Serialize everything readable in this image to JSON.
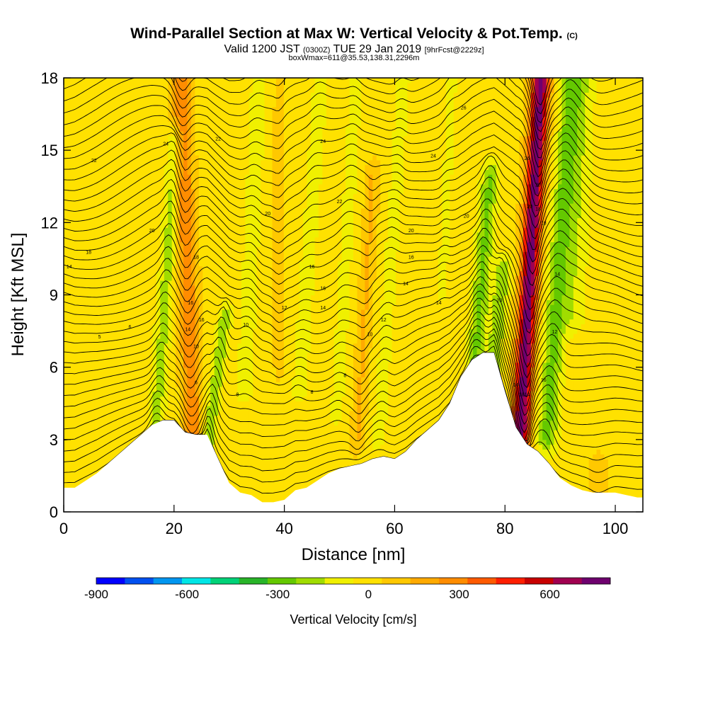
{
  "header": {
    "title_main": "Wind-Parallel Section at Max W: Vertical Velocity & Pot.Temp.",
    "title_mark": "(C)",
    "subtitle_a": "Valid 1200 JST",
    "subtitle_b": "(0300Z)",
    "subtitle_c": "TUE 29 Jan 2019",
    "subtitle_d": "[9hrFcst@2229z]",
    "subtitle_2": "boxWmax=611@35.53,138.31,2296m"
  },
  "chart_data": {
    "type": "heatmap",
    "xlabel": "Distance [nm]",
    "ylabel": "Height [Kft MSL]",
    "xlim": [
      0,
      105
    ],
    "ylim": [
      0,
      18
    ],
    "x_ticks": [
      "0",
      "20",
      "40",
      "60",
      "80",
      "100"
    ],
    "y_ticks": [
      "0",
      "3",
      "6",
      "9",
      "12",
      "15",
      "18"
    ],
    "colorbar": {
      "title": "Vertical Velocity [cm/s]",
      "range": [
        -900,
        800
      ],
      "step": 100,
      "tick_labels": [
        "-900",
        "-600",
        "-300",
        "0",
        "300",
        "600"
      ],
      "colors": [
        "#0000ff",
        "#0050f0",
        "#0096f0",
        "#00e6e6",
        "#00d278",
        "#28b428",
        "#64c800",
        "#a0dc00",
        "#f0f000",
        "#ffe100",
        "#ffc800",
        "#ffaa00",
        "#ff8c00",
        "#ff5a00",
        "#ff1e00",
        "#c80000",
        "#a00050",
        "#6e006e"
      ]
    },
    "terrain": {
      "x": [
        0,
        2,
        4,
        6,
        8,
        10,
        12,
        14,
        16,
        18,
        20,
        22,
        24,
        26,
        28,
        30,
        32,
        34,
        36,
        38,
        40,
        42,
        44,
        46,
        48,
        50,
        52,
        54,
        56,
        58,
        60,
        62,
        64,
        66,
        68,
        70,
        72,
        74,
        76,
        78,
        80,
        82,
        84,
        86,
        88,
        90,
        92,
        94,
        96,
        98,
        100,
        102,
        104,
        105
      ],
      "h": [
        1.0,
        1.0,
        1.3,
        1.6,
        2.0,
        2.4,
        2.8,
        3.2,
        3.6,
        3.8,
        3.8,
        3.3,
        3.2,
        3.2,
        2.2,
        1.2,
        0.8,
        0.7,
        0.4,
        0.4,
        0.5,
        0.9,
        1.0,
        1.3,
        1.6,
        1.8,
        1.9,
        2.0,
        2.2,
        2.3,
        2.2,
        2.5,
        3.0,
        3.4,
        3.8,
        4.5,
        5.6,
        6.3,
        6.6,
        6.6,
        5.0,
        3.5,
        2.8,
        2.5,
        2.0,
        1.4,
        1.1,
        0.9,
        0.8,
        0.8,
        0.8,
        0.7,
        0.6,
        0.6
      ]
    },
    "w_features": [
      {
        "x": 17.5,
        "slope": 0.3,
        "width": 1.4,
        "amp": -210,
        "z0": 2,
        "z1": 15.5
      },
      {
        "x": 23,
        "slope": -0.15,
        "width": 1.7,
        "amp": 330,
        "z0": 3,
        "z1": 18
      },
      {
        "x": 28,
        "slope": 0.6,
        "width": 1.2,
        "amp": -260,
        "z0": 1,
        "z1": 8
      },
      {
        "x": 33,
        "slope": 0.2,
        "width": 1.6,
        "amp": -120,
        "z0": 5,
        "z1": 18
      },
      {
        "x": 43,
        "slope": 0.3,
        "width": 1.6,
        "amp": -110,
        "z0": 5,
        "z1": 18
      },
      {
        "x": 50,
        "slope": 0.25,
        "width": 1.5,
        "amp": -100,
        "z0": 4,
        "z1": 18
      },
      {
        "x": 54,
        "slope": 0.25,
        "width": 1.3,
        "amp": 150,
        "z0": 3,
        "z1": 14
      },
      {
        "x": 58,
        "slope": 0.3,
        "width": 1.4,
        "amp": -110,
        "z0": 3,
        "z1": 18
      },
      {
        "x": 74.5,
        "slope": 0.35,
        "width": 1.6,
        "amp": -280,
        "z0": 6,
        "z1": 14
      },
      {
        "x": 78,
        "slope": 0.4,
        "width": 1.5,
        "amp": -250,
        "z0": 6,
        "z1": 10
      },
      {
        "x": 83.5,
        "slope": 0.25,
        "width": 1.7,
        "amp": 800,
        "z0": 2.5,
        "z1": 18
      },
      {
        "x": 88.5,
        "slope": 0.3,
        "width": 1.9,
        "amp": -300,
        "z0": 3,
        "z1": 18
      },
      {
        "x": 92,
        "slope": 0.2,
        "width": 2.2,
        "amp": -140,
        "z0": 8,
        "z1": 18
      },
      {
        "x": 68,
        "slope": 0.2,
        "width": 1.2,
        "amp": -90,
        "z0": 9,
        "z1": 18
      },
      {
        "x": 39,
        "slope": 0.0,
        "width": 1.0,
        "amp": 90,
        "z0": 6,
        "z1": 18
      },
      {
        "x": 97,
        "slope": 0.0,
        "width": 1.8,
        "amp": 90,
        "z0": 0.5,
        "z1": 2
      }
    ],
    "theta_contours": {
      "levels": [
        4,
        5,
        6,
        7,
        8,
        9,
        10,
        11,
        12,
        13,
        14,
        15,
        16,
        17,
        18,
        19,
        20,
        21,
        22,
        23,
        24,
        25,
        26,
        27,
        28,
        29,
        30,
        31,
        32,
        33,
        34,
        35,
        36,
        37,
        38,
        39,
        40,
        41,
        42,
        43,
        44
      ],
      "labels": [
        {
          "text": "5",
          "x": 6.5,
          "y": 7.2
        },
        {
          "text": "6",
          "x": 12,
          "y": 7.6
        },
        {
          "text": "14",
          "x": 1,
          "y": 10.1
        },
        {
          "text": "18",
          "x": 4.5,
          "y": 10.7
        },
        {
          "text": "22",
          "x": 5.5,
          "y": 14.5
        },
        {
          "text": "20",
          "x": 16,
          "y": 11.6
        },
        {
          "text": "24",
          "x": 18.5,
          "y": 15.2
        },
        {
          "text": "6",
          "x": 24,
          "y": 5.3
        },
        {
          "text": "10",
          "x": 24,
          "y": 6.8
        },
        {
          "text": "14",
          "x": 22.5,
          "y": 7.5
        },
        {
          "text": "16",
          "x": 25,
          "y": 7.9
        },
        {
          "text": "16",
          "x": 23,
          "y": 8.6
        },
        {
          "text": "18",
          "x": 24,
          "y": 10.5
        },
        {
          "text": "22",
          "x": 28,
          "y": 15.4
        },
        {
          "text": "8",
          "x": 31.5,
          "y": 4.8
        },
        {
          "text": "10",
          "x": 33,
          "y": 7.7
        },
        {
          "text": "20",
          "x": 37,
          "y": 12.3
        },
        {
          "text": "12",
          "x": 40,
          "y": 8.4
        },
        {
          "text": "8",
          "x": 45,
          "y": 4.9
        },
        {
          "text": "16",
          "x": 45,
          "y": 10.1
        },
        {
          "text": "16",
          "x": 47,
          "y": 9.2
        },
        {
          "text": "14",
          "x": 47,
          "y": 8.4
        },
        {
          "text": "24",
          "x": 47,
          "y": 15.3
        },
        {
          "text": "22",
          "x": 50,
          "y": 12.8
        },
        {
          "text": "8",
          "x": 51,
          "y": 5.6
        },
        {
          "text": "10",
          "x": 55.5,
          "y": 7.3
        },
        {
          "text": "12",
          "x": 58,
          "y": 7.9
        },
        {
          "text": "14",
          "x": 62,
          "y": 9.4
        },
        {
          "text": "16",
          "x": 63,
          "y": 10.5
        },
        {
          "text": "20",
          "x": 63,
          "y": 11.6
        },
        {
          "text": "14",
          "x": 68,
          "y": 8.6
        },
        {
          "text": "24",
          "x": 67,
          "y": 14.7
        },
        {
          "text": "20",
          "x": 73,
          "y": 12.2
        },
        {
          "text": "26",
          "x": 72.5,
          "y": 16.7
        },
        {
          "text": "20",
          "x": 79,
          "y": 8.7
        },
        {
          "text": "16",
          "x": 82,
          "y": 5.2
        },
        {
          "text": "18",
          "x": 83,
          "y": 4.8
        },
        {
          "text": "14",
          "x": 84,
          "y": 4.8
        },
        {
          "text": "16",
          "x": 87,
          "y": 5.4
        },
        {
          "text": "12",
          "x": 89,
          "y": 7.4
        },
        {
          "text": "14",
          "x": 89.5,
          "y": 9.8
        },
        {
          "text": "18",
          "x": 87,
          "y": 11.9
        },
        {
          "text": "18",
          "x": 86,
          "y": 12.5
        },
        {
          "text": "20",
          "x": 84.5,
          "y": 12.6
        },
        {
          "text": "20",
          "x": 86,
          "y": 13.5
        },
        {
          "text": "26",
          "x": 84,
          "y": 14.6
        }
      ]
    }
  }
}
